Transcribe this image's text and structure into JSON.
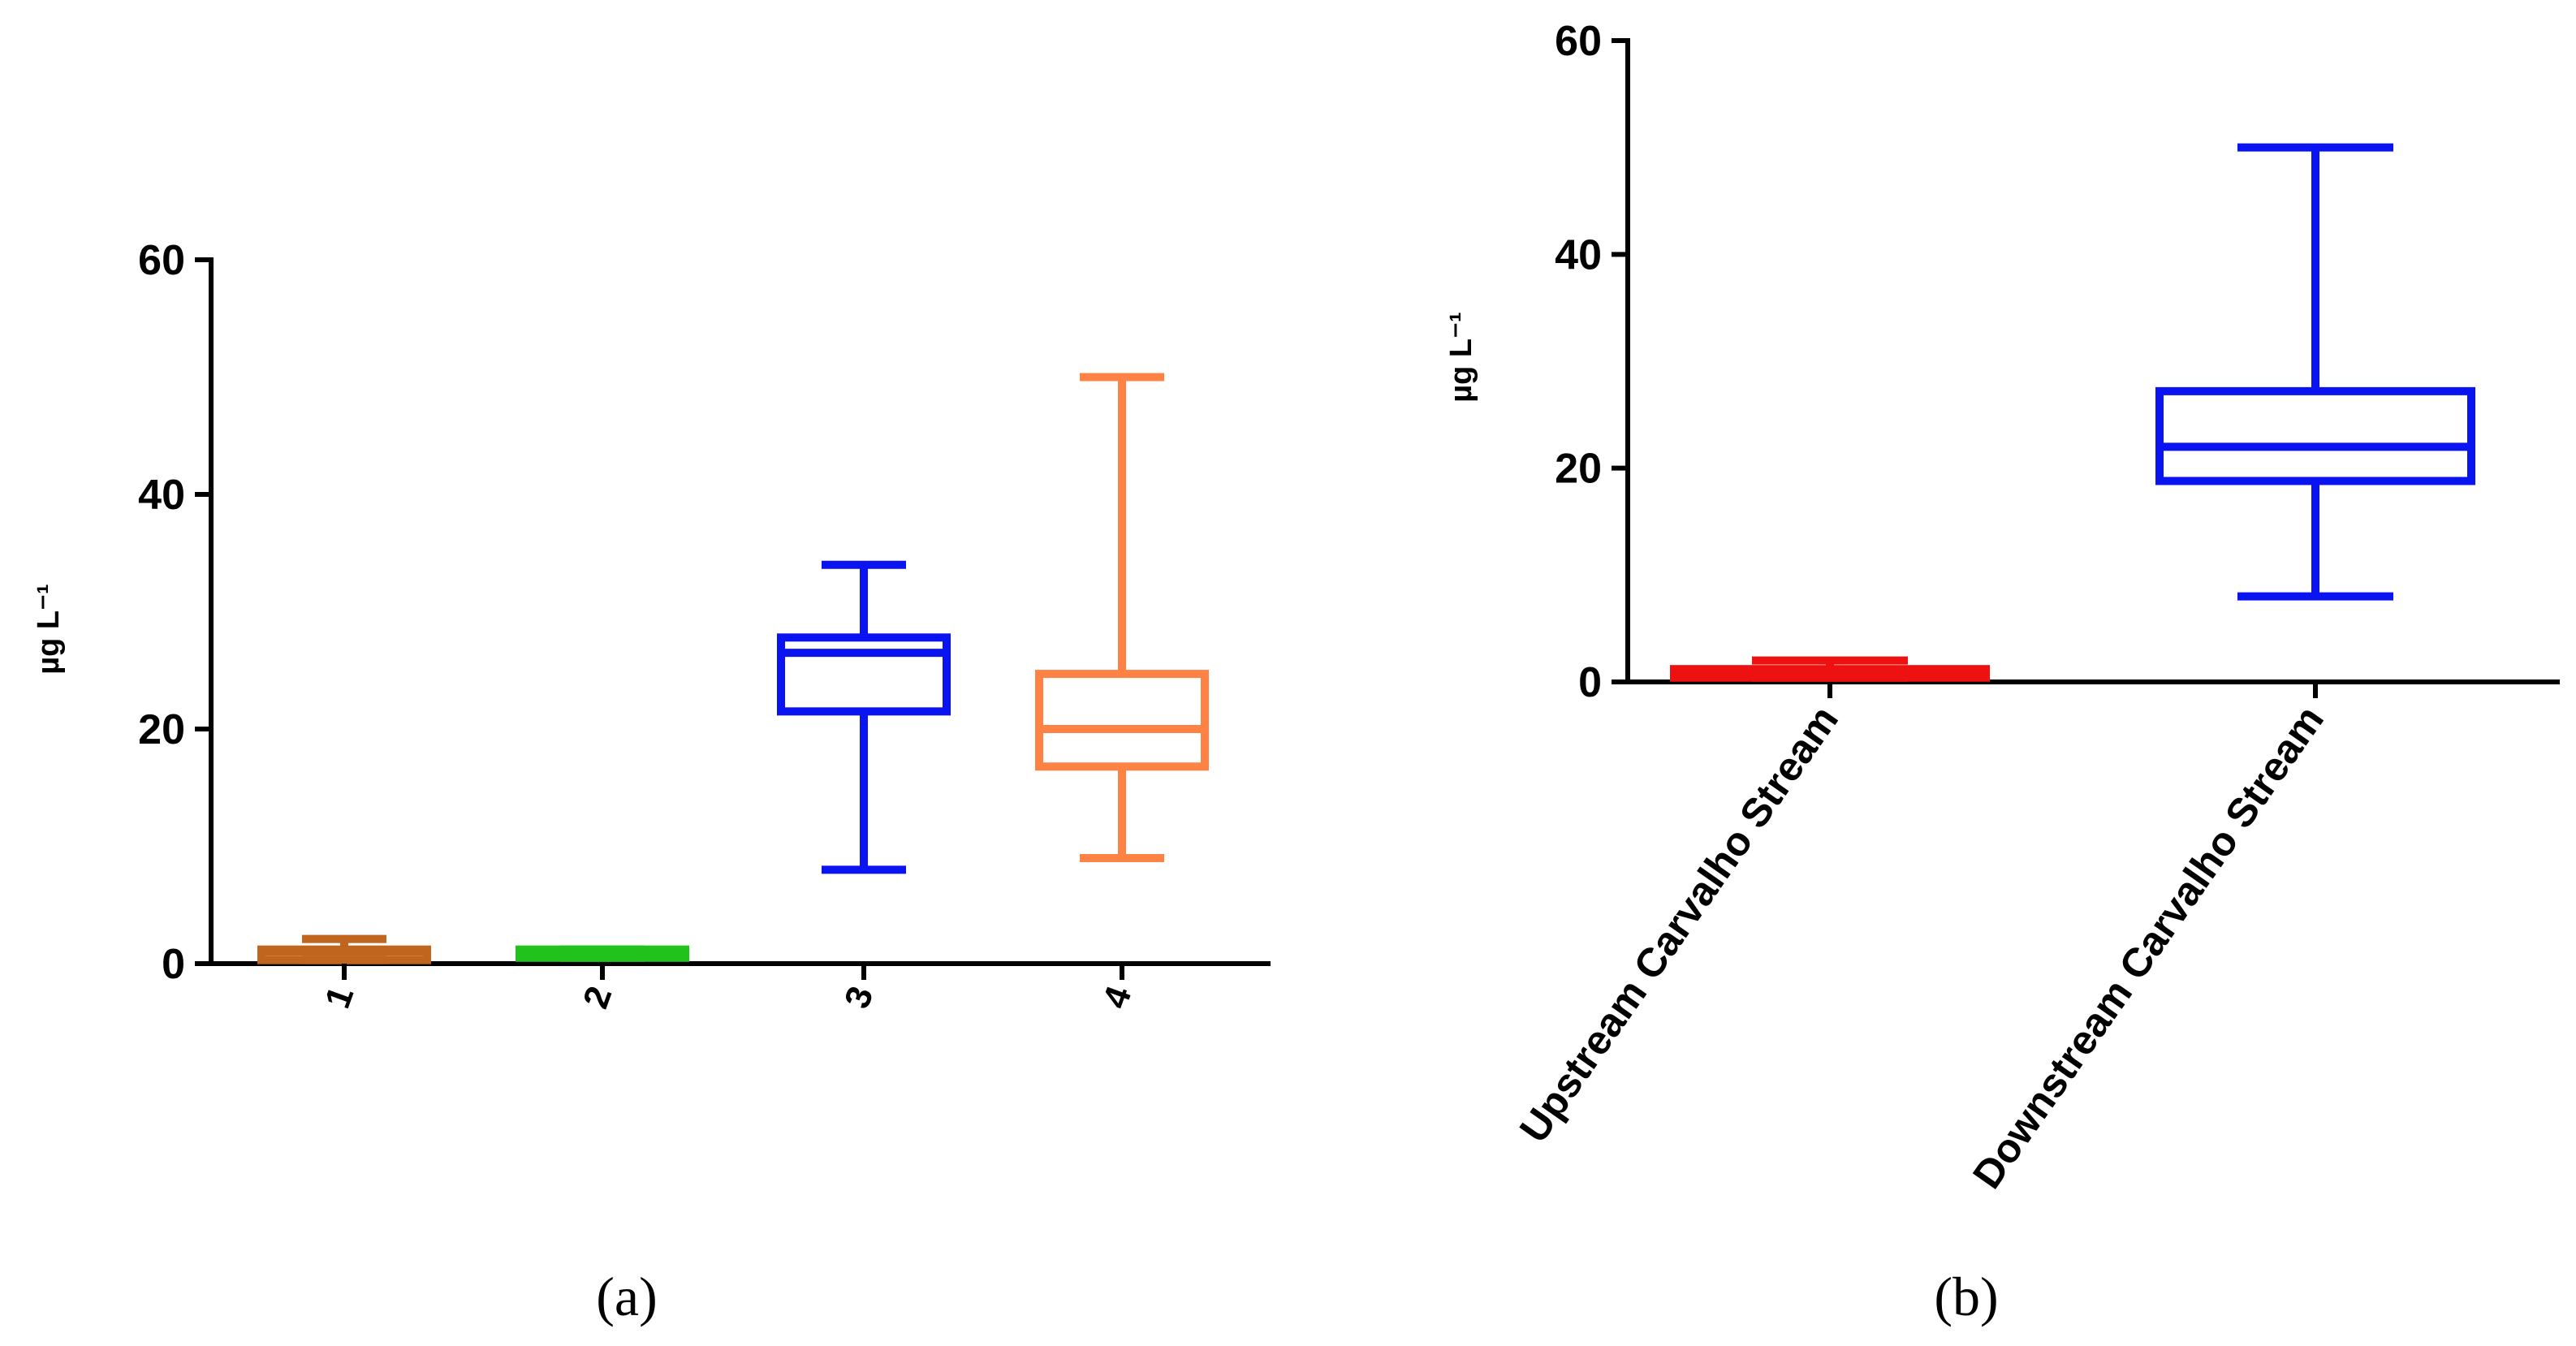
{
  "chart_data": [
    {
      "type": "boxplot",
      "panel_label": "(a)",
      "ylabel": "µg L⁻¹",
      "ylim": [
        0,
        60
      ],
      "yticks": [
        0,
        20,
        40,
        60
      ],
      "categories": [
        "1",
        "2",
        "3",
        "4"
      ],
      "boxes": [
        {
          "name": "1",
          "color": "#c0651d",
          "min": 0.3,
          "q1": 0.3,
          "median": 1.0,
          "q3": 1.2,
          "max": 2.1
        },
        {
          "name": "2",
          "color": "#22c21c",
          "min": 0.5,
          "q1": 0.5,
          "median": 1.0,
          "q3": 1.2,
          "max": 1.2
        },
        {
          "name": "3",
          "color": "#0a14f0",
          "min": 8.0,
          "q1": 21.5,
          "median": 26.5,
          "q3": 27.8,
          "max": 34.0
        },
        {
          "name": "4",
          "color": "#ff8245",
          "min": 9.0,
          "q1": 16.8,
          "median": 20.0,
          "q3": 24.7,
          "max": 50.0
        }
      ]
    },
    {
      "type": "boxplot",
      "panel_label": "(b)",
      "ylabel": "µg L⁻¹",
      "ylim": [
        0,
        60
      ],
      "yticks": [
        0,
        20,
        40,
        60
      ],
      "categories": [
        "Upstream Carvalho Stream",
        "Downstream Carvalho Stream"
      ],
      "boxes": [
        {
          "name": "Upstream Carvalho Stream",
          "color": "#ee1111",
          "min": 0.4,
          "q1": 0.4,
          "median": 1.0,
          "q3": 1.2,
          "max": 2.0
        },
        {
          "name": "Downstream Carvalho Stream",
          "color": "#0a14f0",
          "min": 8.0,
          "q1": 18.8,
          "median": 22.0,
          "q3": 27.2,
          "max": 50.0
        }
      ]
    }
  ]
}
